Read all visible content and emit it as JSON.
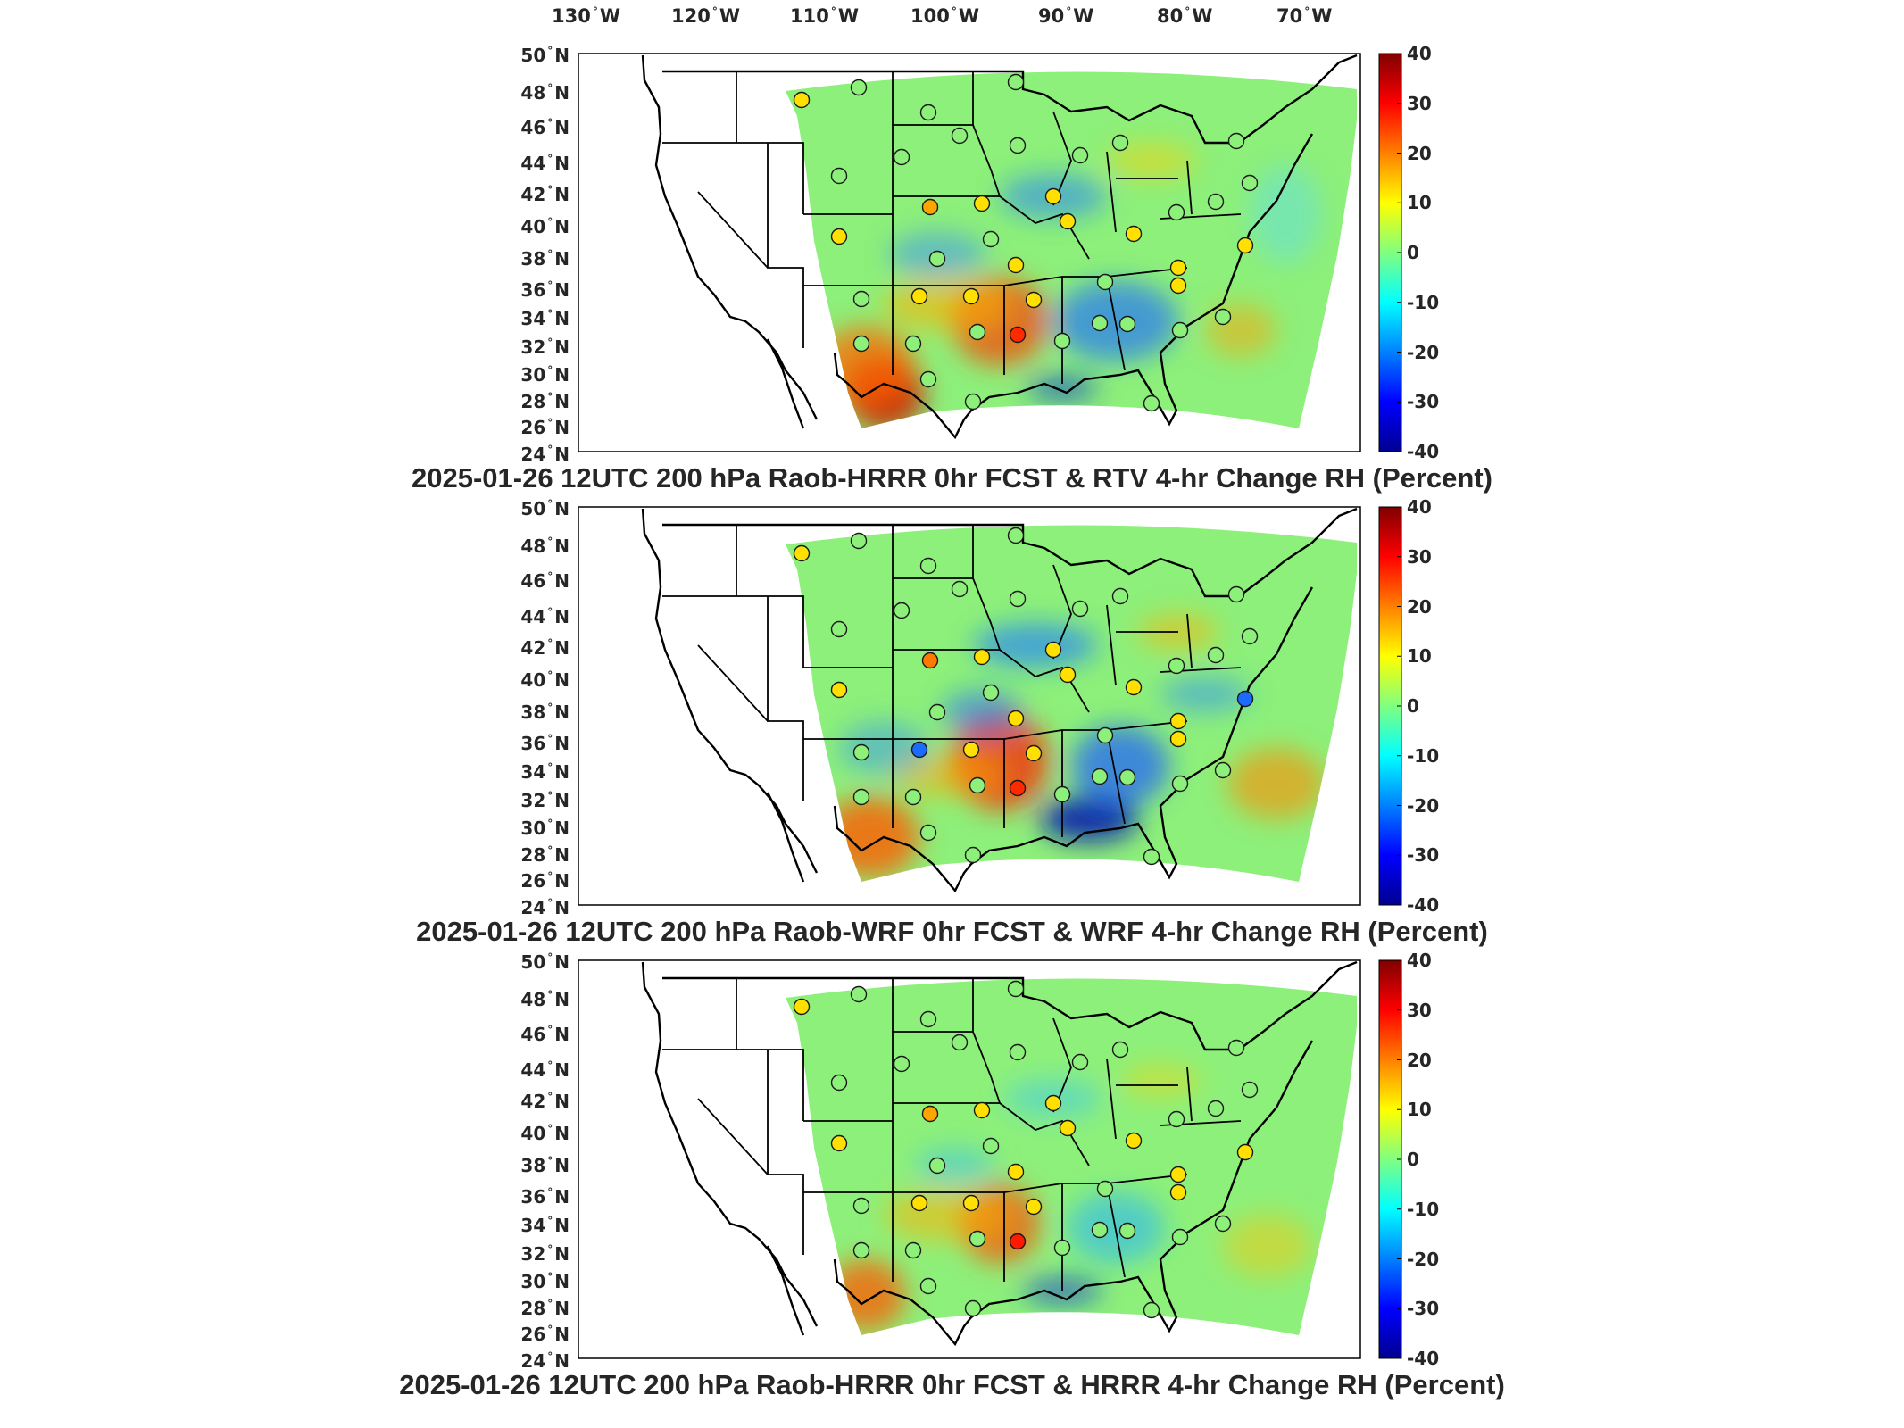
{
  "lon_labels": [
    "130",
    "120",
    "110",
    "100",
    "90",
    "80",
    "70"
  ],
  "lon_suffix": "W",
  "lat_labels": [
    "50",
    "48",
    "46",
    "44",
    "42",
    "40",
    "38",
    "36",
    "34",
    "32",
    "30",
    "28",
    "26",
    "24"
  ],
  "lat_suffix": "N",
  "colorbar": {
    "ticks": [
      "40",
      "30",
      "20",
      "10",
      "0",
      "-10",
      "-20",
      "-30",
      "-40"
    ],
    "min": -40,
    "max": 40,
    "colormap": [
      "#00008f",
      "#0000ff",
      "#0080ff",
      "#00ffff",
      "#80ff80",
      "#ffff00",
      "#ff8000",
      "#ff0000",
      "#800000"
    ]
  },
  "panels": [
    {
      "title": "2025-01-26 12UTC 200 hPa Raob-HRRR 0hr FCST & RTV 4-hr Change RH (Percent)"
    },
    {
      "title": "2025-01-26 12UTC 200 hPa Raob-WRF 0hr FCST & WRF 4-hr Change RH (Percent)"
    },
    {
      "title": "2025-01-26 12UTC 200 hPa Raob-HRRR 0hr FCST & HRRR 4-hr Change RH (Percent)"
    }
  ],
  "colors": {
    "background": "#ffffff",
    "frame": "#000000",
    "base_field": "#8df07a"
  }
}
